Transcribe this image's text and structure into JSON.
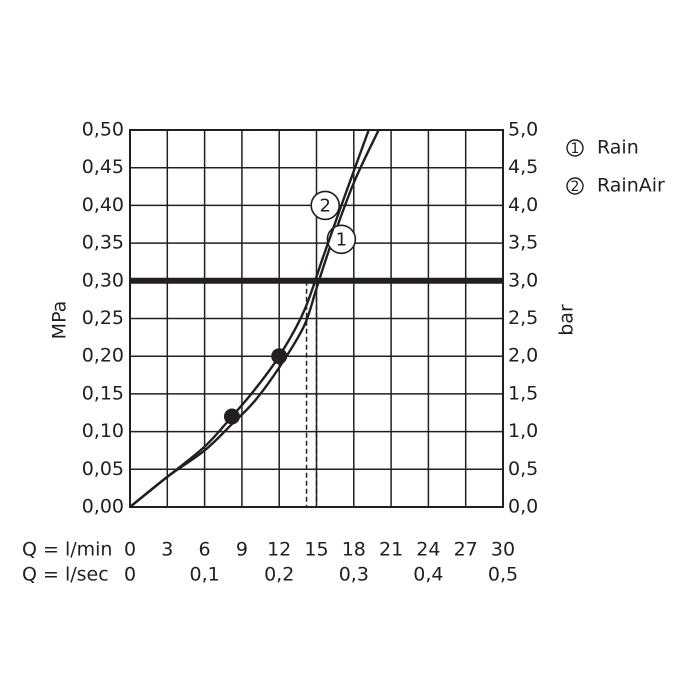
{
  "chart_data": {
    "type": "line",
    "x": {
      "unit_label": "Q = l/min",
      "range": [
        0,
        30
      ],
      "ticks": [
        "0",
        "3",
        "6",
        "9",
        "12",
        "15",
        "18",
        "21",
        "24",
        "27",
        "30"
      ],
      "secondary_unit_label": "Q = l/sec",
      "secondary_ticks": [
        {
          "at": 0,
          "label": "0"
        },
        {
          "at": 6,
          "label": "0,1"
        },
        {
          "at": 12,
          "label": "0,2"
        },
        {
          "at": 18,
          "label": "0,3"
        },
        {
          "at": 24,
          "label": "0,4"
        },
        {
          "at": 30,
          "label": "0,5"
        }
      ]
    },
    "y_left": {
      "label": "MPa",
      "range": [
        0,
        0.5
      ],
      "ticks": [
        "0,00",
        "0,05",
        "0,10",
        "0,15",
        "0,20",
        "0,25",
        "0,30",
        "0,35",
        "0,40",
        "0,45",
        "0,50"
      ]
    },
    "y_right": {
      "label": "bar",
      "range": [
        0,
        5
      ],
      "ticks": [
        "0,0",
        "0,5",
        "1,0",
        "1,5",
        "2,0",
        "2,5",
        "3,0",
        "3,5",
        "4,0",
        "4,5",
        "5,0"
      ]
    },
    "grid": true,
    "reference_line": {
      "y": 0.3
    },
    "dashed_drops": [
      {
        "x": 14.2,
        "y": 0.3
      },
      {
        "x": 15.0,
        "y": 0.3
      }
    ],
    "series": [
      {
        "name": "Rain",
        "marker": "1",
        "label_at": {
          "x": 17.0,
          "y": 0.355
        },
        "points": [
          [
            0,
            0
          ],
          [
            3,
            0.04
          ],
          [
            6,
            0.075
          ],
          [
            8.2,
            0.11
          ],
          [
            10,
            0.14
          ],
          [
            12,
            0.185
          ],
          [
            14,
            0.24
          ],
          [
            15,
            0.29
          ],
          [
            16.2,
            0.35
          ],
          [
            18,
            0.43
          ],
          [
            20,
            0.5
          ]
        ]
      },
      {
        "name": "RainAir",
        "marker": "2",
        "label_at": {
          "x": 15.7,
          "y": 0.4
        },
        "points": [
          [
            0,
            0
          ],
          [
            3,
            0.04
          ],
          [
            6,
            0.08
          ],
          [
            8.2,
            0.12
          ],
          [
            10,
            0.155
          ],
          [
            12,
            0.2
          ],
          [
            14,
            0.26
          ],
          [
            15.5,
            0.33
          ],
          [
            17,
            0.4
          ],
          [
            19.2,
            0.5
          ]
        ]
      }
    ],
    "points_marked": [
      {
        "x": 8.2,
        "y": 0.12
      },
      {
        "x": 12.0,
        "y": 0.2
      }
    ]
  },
  "legend": [
    {
      "marker": "1",
      "label": "Rain"
    },
    {
      "marker": "2",
      "label": "RainAir"
    }
  ]
}
